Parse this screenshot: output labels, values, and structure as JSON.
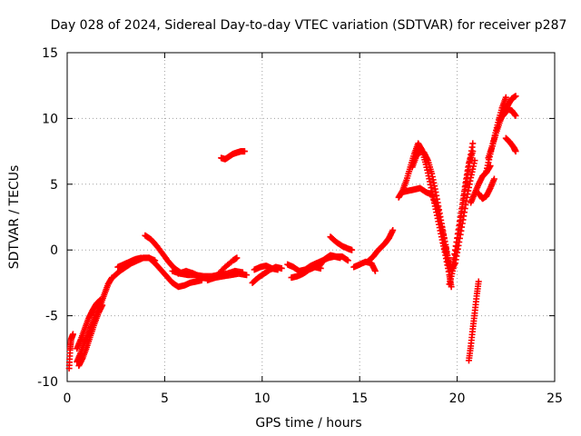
{
  "chart_data": {
    "type": "scatter",
    "title": "Day 028 of 2024, Sidereal Day-to-day VTEC variation (SDTVAR) for receiver p287",
    "xlabel": "GPS time / hours",
    "ylabel": "SDTVAR / TECUs",
    "xlim": [
      0,
      25
    ],
    "ylim": [
      -10,
      15
    ],
    "xticks": [
      "0",
      "5",
      "10",
      "15",
      "20",
      "25"
    ],
    "yticks": [
      "-10",
      "-5",
      "0",
      "5",
      "10",
      "15"
    ],
    "grid": true,
    "marker": "+",
    "series": [
      {
        "name": "SDTVAR",
        "color": "#ff0000",
        "tracks": [
          [
            [
              0.1,
              -9.0
            ],
            [
              0.15,
              -7.6
            ],
            [
              0.2,
              -6.8
            ],
            [
              0.3,
              -6.4
            ]
          ],
          [
            [
              0.5,
              -8.5
            ],
            [
              0.7,
              -7.8
            ],
            [
              0.9,
              -7.0
            ],
            [
              1.1,
              -6.3
            ],
            [
              1.3,
              -5.6
            ],
            [
              1.5,
              -4.9
            ],
            [
              1.7,
              -4.2
            ],
            [
              1.9,
              -3.4
            ],
            [
              2.1,
              -2.6
            ],
            [
              2.3,
              -2.1
            ]
          ],
          [
            [
              0.5,
              -7.5
            ],
            [
              0.7,
              -6.8
            ],
            [
              0.9,
              -6.0
            ],
            [
              1.1,
              -5.2
            ],
            [
              1.3,
              -4.6
            ],
            [
              1.5,
              -4.1
            ],
            [
              1.7,
              -3.8
            ]
          ],
          [
            [
              0.6,
              -8.8
            ],
            [
              0.8,
              -8.2
            ],
            [
              1.0,
              -7.4
            ],
            [
              1.2,
              -6.5
            ],
            [
              1.4,
              -5.6
            ],
            [
              1.6,
              -4.8
            ],
            [
              1.8,
              -4.2
            ]
          ],
          [
            [
              2.4,
              -2.0
            ],
            [
              2.7,
              -1.6
            ],
            [
              3.0,
              -1.3
            ],
            [
              3.3,
              -1.0
            ],
            [
              3.6,
              -0.8
            ],
            [
              3.9,
              -0.6
            ],
            [
              4.2,
              -0.6
            ],
            [
              4.5,
              -0.8
            ]
          ],
          [
            [
              2.6,
              -1.3
            ],
            [
              2.9,
              -1.1
            ],
            [
              3.2,
              -0.9
            ],
            [
              3.5,
              -0.7
            ],
            [
              3.8,
              -0.6
            ]
          ],
          [
            [
              4.0,
              1.1
            ],
            [
              4.3,
              0.8
            ],
            [
              4.6,
              0.3
            ],
            [
              4.9,
              -0.3
            ],
            [
              5.2,
              -0.9
            ],
            [
              5.5,
              -1.4
            ],
            [
              5.8,
              -1.7
            ]
          ],
          [
            [
              4.2,
              -0.6
            ],
            [
              4.5,
              -1.0
            ],
            [
              4.8,
              -1.5
            ],
            [
              5.1,
              -2.0
            ],
            [
              5.4,
              -2.5
            ],
            [
              5.7,
              -2.8
            ],
            [
              6.0,
              -2.7
            ],
            [
              6.3,
              -2.5
            ],
            [
              6.6,
              -2.4
            ],
            [
              6.9,
              -2.3
            ]
          ],
          [
            [
              5.4,
              -1.6
            ],
            [
              5.8,
              -1.8
            ],
            [
              6.2,
              -1.9
            ],
            [
              6.6,
              -1.9
            ],
            [
              7.0,
              -2.0
            ],
            [
              7.4,
              -2.0
            ],
            [
              7.8,
              -1.9
            ],
            [
              8.2,
              -1.8
            ],
            [
              8.6,
              -1.6
            ],
            [
              9.0,
              -1.7
            ]
          ],
          [
            [
              5.7,
              -1.8
            ],
            [
              6.1,
              -1.6
            ],
            [
              6.5,
              -1.8
            ],
            [
              6.9,
              -2.1
            ],
            [
              7.3,
              -2.2
            ],
            [
              7.7,
              -1.9
            ],
            [
              8.1,
              -1.3
            ],
            [
              8.5,
              -0.8
            ],
            [
              8.7,
              -0.6
            ]
          ],
          [
            [
              7.2,
              -2.3
            ],
            [
              7.6,
              -2.1
            ],
            [
              8.0,
              -2.0
            ],
            [
              8.4,
              -1.9
            ],
            [
              8.8,
              -1.8
            ],
            [
              9.2,
              -1.9
            ]
          ],
          [
            [
              7.9,
              7.0
            ],
            [
              8.1,
              6.9
            ],
            [
              8.3,
              7.1
            ],
            [
              8.5,
              7.3
            ],
            [
              8.7,
              7.4
            ],
            [
              8.9,
              7.5
            ],
            [
              9.1,
              7.5
            ]
          ],
          [
            [
              9.5,
              -2.5
            ],
            [
              9.8,
              -2.1
            ],
            [
              10.1,
              -1.8
            ],
            [
              10.4,
              -1.5
            ],
            [
              10.7,
              -1.3
            ],
            [
              11.0,
              -1.4
            ]
          ],
          [
            [
              9.6,
              -1.5
            ],
            [
              9.9,
              -1.3
            ],
            [
              10.2,
              -1.2
            ],
            [
              10.5,
              -1.4
            ],
            [
              10.8,
              -1.5
            ]
          ],
          [
            [
              11.3,
              -1.1
            ],
            [
              11.6,
              -1.3
            ],
            [
              11.9,
              -1.6
            ],
            [
              12.2,
              -1.5
            ],
            [
              12.5,
              -1.2
            ],
            [
              12.8,
              -1.0
            ],
            [
              13.1,
              -0.8
            ],
            [
              13.4,
              -0.6
            ],
            [
              13.7,
              -0.5
            ],
            [
              14.0,
              -0.6
            ]
          ],
          [
            [
              11.5,
              -2.1
            ],
            [
              11.8,
              -2.0
            ],
            [
              12.1,
              -1.8
            ],
            [
              12.4,
              -1.5
            ],
            [
              12.7,
              -1.3
            ],
            [
              13.0,
              -1.4
            ]
          ],
          [
            [
              12.9,
              -1.3
            ],
            [
              13.2,
              -0.7
            ],
            [
              13.5,
              -0.4
            ],
            [
              13.8,
              -0.5
            ],
            [
              14.1,
              -0.5
            ],
            [
              14.4,
              -0.8
            ]
          ],
          [
            [
              13.5,
              1.0
            ],
            [
              13.8,
              0.6
            ],
            [
              14.1,
              0.3
            ],
            [
              14.4,
              0.1
            ],
            [
              14.6,
              0.0
            ]
          ],
          [
            [
              14.7,
              -1.3
            ],
            [
              15.0,
              -1.1
            ],
            [
              15.3,
              -0.9
            ],
            [
              15.6,
              -1.0
            ],
            [
              15.8,
              -1.6
            ]
          ],
          [
            [
              15.4,
              -0.9
            ],
            [
              15.7,
              -0.5
            ],
            [
              15.9,
              -0.1
            ],
            [
              16.1,
              0.2
            ],
            [
              16.3,
              0.5
            ],
            [
              16.5,
              0.9
            ],
            [
              16.7,
              1.5
            ]
          ],
          [
            [
              17.0,
              4.0
            ],
            [
              17.2,
              4.5
            ],
            [
              17.4,
              5.3
            ],
            [
              17.6,
              6.3
            ],
            [
              17.8,
              7.3
            ],
            [
              18.0,
              8.1
            ],
            [
              18.2,
              7.6
            ],
            [
              18.4,
              6.5
            ],
            [
              18.6,
              5.2
            ],
            [
              18.8,
              3.8
            ],
            [
              19.0,
              2.4
            ],
            [
              19.2,
              1.0
            ],
            [
              19.4,
              -0.4
            ],
            [
              19.6,
              -1.9
            ],
            [
              19.7,
              -2.8
            ]
          ],
          [
            [
              17.2,
              4.4
            ],
            [
              17.5,
              4.5
            ],
            [
              17.8,
              4.6
            ],
            [
              18.1,
              4.7
            ],
            [
              18.4,
              4.4
            ],
            [
              18.7,
              4.2
            ],
            [
              19.0,
              3.2
            ],
            [
              19.2,
              1.8
            ],
            [
              19.4,
              0.4
            ],
            [
              19.5,
              -0.6
            ]
          ],
          [
            [
              17.7,
              6.3
            ],
            [
              17.9,
              7.1
            ],
            [
              18.1,
              7.6
            ],
            [
              18.3,
              7.4
            ],
            [
              18.5,
              6.8
            ],
            [
              18.7,
              5.8
            ],
            [
              18.9,
              4.4
            ],
            [
              19.1,
              2.8
            ],
            [
              19.3,
              1.2
            ],
            [
              19.5,
              -0.4
            ],
            [
              19.6,
              -1.6
            ]
          ],
          [
            [
              19.3,
              0.5
            ],
            [
              19.5,
              -0.6
            ],
            [
              19.7,
              -1.5
            ],
            [
              19.9,
              -1.0
            ],
            [
              20.1,
              0.6
            ],
            [
              20.3,
              2.3
            ],
            [
              20.5,
              4.0
            ],
            [
              20.7,
              5.5
            ],
            [
              20.9,
              6.8
            ]
          ],
          [
            [
              19.6,
              -2.6
            ],
            [
              19.8,
              -1.4
            ],
            [
              20.0,
              0.6
            ],
            [
              20.2,
              2.6
            ],
            [
              20.4,
              4.6
            ],
            [
              20.6,
              6.4
            ],
            [
              20.8,
              8.1
            ]
          ],
          [
            [
              19.8,
              -0.9
            ],
            [
              20.0,
              0.9
            ],
            [
              20.2,
              2.8
            ],
            [
              20.4,
              4.8
            ],
            [
              20.6,
              6.6
            ],
            [
              20.8,
              7.5
            ]
          ],
          [
            [
              20.6,
              -8.4
            ],
            [
              20.7,
              -7.3
            ],
            [
              20.8,
              -6.0
            ],
            [
              20.9,
              -4.8
            ],
            [
              21.0,
              -3.5
            ],
            [
              21.1,
              -2.4
            ]
          ],
          [
            [
              20.7,
              3.6
            ],
            [
              20.9,
              4.3
            ],
            [
              21.1,
              5.0
            ],
            [
              21.3,
              5.6
            ],
            [
              21.5,
              5.9
            ],
            [
              21.7,
              6.4
            ]
          ],
          [
            [
              21.1,
              4.3
            ],
            [
              21.3,
              3.9
            ],
            [
              21.5,
              4.1
            ],
            [
              21.7,
              4.7
            ],
            [
              21.9,
              5.4
            ]
          ],
          [
            [
              21.5,
              6.0
            ],
            [
              21.7,
              7.3
            ],
            [
              21.9,
              8.5
            ],
            [
              22.1,
              9.7
            ],
            [
              22.3,
              10.8
            ],
            [
              22.5,
              11.6
            ]
          ],
          [
            [
              21.6,
              7.0
            ],
            [
              21.8,
              7.9
            ],
            [
              22.0,
              8.9
            ],
            [
              22.2,
              9.8
            ],
            [
              22.4,
              10.5
            ],
            [
              22.6,
              11.0
            ],
            [
              22.8,
              11.5
            ],
            [
              23.0,
              11.7
            ]
          ],
          [
            [
              22.2,
              10.0
            ],
            [
              22.4,
              10.3
            ],
            [
              22.6,
              10.7
            ],
            [
              22.8,
              10.6
            ],
            [
              23.0,
              10.2
            ]
          ],
          [
            [
              22.5,
              8.5
            ],
            [
              22.7,
              8.2
            ],
            [
              22.9,
              7.8
            ],
            [
              23.0,
              7.5
            ]
          ]
        ]
      }
    ]
  }
}
